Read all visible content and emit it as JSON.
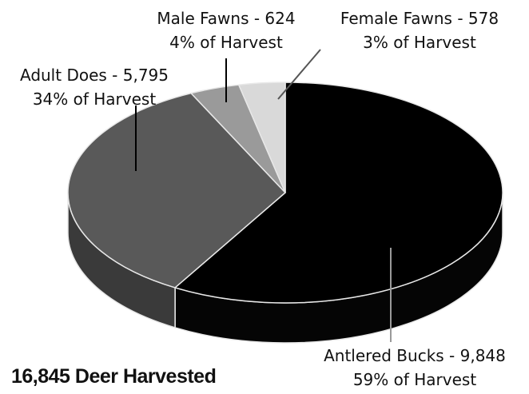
{
  "chart_data": {
    "type": "pie",
    "style": "3d-tilted",
    "total_label": "16,845 Deer Harvested",
    "slices": [
      {
        "name": "Antlered Bucks",
        "value": 9848,
        "percent": 59,
        "line1": "Antlered Bucks - 9,848",
        "line2": "59% of Harvest",
        "color": "#000000",
        "side_color": "#050505"
      },
      {
        "name": "Adult Does",
        "value": 5795,
        "percent": 34,
        "line1": "Adult Does -  5,795",
        "line2": "34% of Harvest",
        "color": "#595959",
        "side_color": "#3a3a3a"
      },
      {
        "name": "Male Fawns",
        "value": 624,
        "percent": 4,
        "line1": "Male Fawns - 624",
        "line2": "4% of Harvest",
        "color": "#9a9a9a",
        "side_color": "#7a7a7a"
      },
      {
        "name": "Female Fawns",
        "value": 578,
        "percent": 3,
        "line1": "Female Fawns - 578",
        "line2": "3% of Harvest",
        "color": "#d9d9d9",
        "side_color": "#b8b8b8"
      }
    ]
  }
}
